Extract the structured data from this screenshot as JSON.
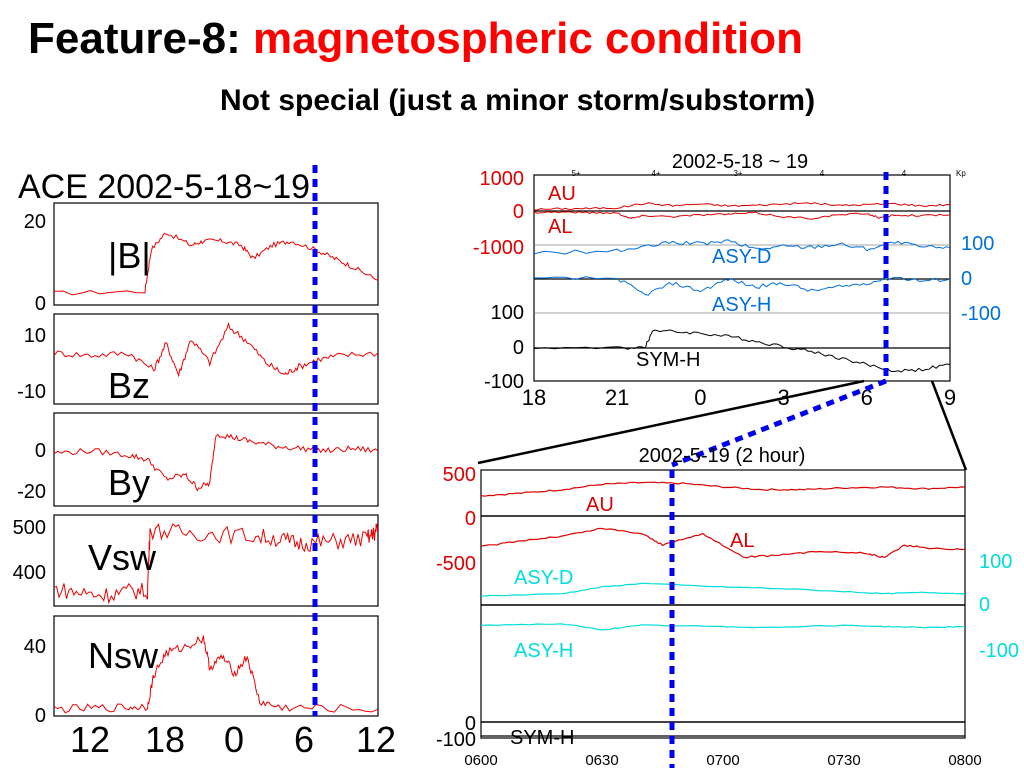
{
  "slide": {
    "title_prefix": "Feature-8:",
    "title_accent": "magnetospheric condition",
    "subtitle": "Not special (just a minor storm/substorm)"
  },
  "colors": {
    "ace_trace": "#ee0000",
    "au_al": "#dd0000",
    "asy_panel_a": "#0070dd",
    "asy_panel_c": "#00dddd",
    "sym": "#000000",
    "marker": "#0000ee"
  },
  "chart_data": [
    {
      "type": "line",
      "title": "ACE 2002-5-18~19",
      "xlabel": "",
      "x_ticks": [
        "12",
        "18",
        "0",
        "6",
        "12"
      ],
      "marker_at": "~07 UT, 2002-5-19",
      "panels": [
        {
          "label": "|B|",
          "ytick_labels": [
            "20",
            "0"
          ],
          "ylim": [
            0,
            22
          ]
        },
        {
          "label": "Bz",
          "ytick_labels": [
            "10",
            "-10"
          ],
          "ylim": [
            -20,
            15
          ]
        },
        {
          "label": "By",
          "ytick_labels": [
            "0",
            "-20"
          ],
          "ylim": [
            -25,
            15
          ]
        },
        {
          "label": "Vsw",
          "ytick_labels": [
            "500",
            "400"
          ],
          "ylim": [
            330,
            510
          ]
        },
        {
          "label": "Nsw",
          "ytick_labels": [
            "40",
            "0"
          ],
          "ylim": [
            0,
            50
          ]
        }
      ],
      "series": [
        {
          "panel": 0,
          "x": [
            10,
            17.3,
            17.8,
            19,
            21,
            22,
            23.5,
            25,
            26,
            27.5,
            29,
            31,
            32.5,
            34,
            36
          ],
          "y": [
            2,
            2.5,
            12,
            16,
            13,
            14,
            14,
            13,
            10,
            13,
            14,
            12,
            10,
            8,
            5
          ]
        },
        {
          "panel": 1,
          "x": [
            10,
            13,
            16,
            18,
            19,
            20,
            21,
            22.5,
            24,
            25.5,
            27,
            28.5,
            29.5,
            31,
            33,
            36
          ],
          "y": [
            0,
            -1,
            0,
            -7,
            4,
            -9,
            6,
            -4,
            11,
            5,
            -4,
            -9,
            -6,
            -3,
            -1,
            0
          ]
        },
        {
          "panel": 2,
          "x": [
            10,
            13,
            16,
            17.5,
            19,
            20.5,
            21.5,
            22.5,
            23,
            24.5,
            26,
            28,
            30,
            32,
            34,
            36
          ],
          "y": [
            -2,
            -1,
            -3,
            -5,
            -14,
            -12,
            -18,
            -16,
            7,
            5,
            3,
            1,
            0,
            -1,
            0,
            -1
          ]
        },
        {
          "panel": 3,
          "x": [
            10,
            12,
            14,
            16,
            17.5,
            17.7,
            20,
            23,
            26,
            28,
            29.5,
            31,
            33,
            35,
            35.7,
            36
          ],
          "y": [
            360,
            352,
            347,
            355,
            355,
            484,
            480,
            476,
            472,
            466,
            456,
            458,
            462,
            466,
            476,
            490
          ]
        },
        {
          "panel": 4,
          "x": [
            10,
            13,
            16,
            17.5,
            18,
            19,
            20.5,
            22,
            22.5,
            23.5,
            24.5,
            25.5,
            26.5,
            28,
            31,
            36
          ],
          "y": [
            2,
            2.5,
            3,
            3.5,
            20,
            32,
            35,
            40,
            24,
            30,
            21,
            30,
            6,
            3,
            2.5,
            2
          ]
        }
      ]
    },
    {
      "type": "line",
      "title": "2002-5-18 ~ 19",
      "x_ticks": [
        "18",
        "21",
        "0",
        "3",
        "6",
        "9"
      ],
      "kp_labels": [
        "5+",
        "4+",
        "3+",
        "4",
        "4"
      ],
      "kp_axis_label": "Kp",
      "panels": [
        {
          "ytick_labels": [
            "1000",
            "0",
            "-1000"
          ],
          "ylim": [
            -1000,
            1000
          ],
          "tick_color": "#dd0000"
        },
        {
          "ytick_labels": [
            "100",
            "0",
            "-100"
          ],
          "ylim": [
            -100,
            100
          ],
          "tick_color": "#0070dd",
          "side": "right"
        },
        {
          "ytick_labels": [
            "100",
            "0",
            "-100"
          ],
          "ylim": [
            -100,
            100
          ],
          "tick_color": "#000000"
        }
      ],
      "series": [
        {
          "name": "AU",
          "panel": 0,
          "x": [
            18,
            19,
            20,
            21,
            22,
            23,
            24,
            25,
            26,
            27,
            28,
            29,
            30,
            31,
            32,
            33
          ],
          "y": [
            50,
            70,
            80,
            100,
            240,
            170,
            220,
            160,
            180,
            220,
            250,
            170,
            200,
            230,
            160,
            200
          ]
        },
        {
          "name": "AL",
          "panel": 0,
          "x": [
            18,
            19,
            20,
            21,
            21.5,
            22,
            23,
            24,
            25,
            26,
            27,
            28,
            29,
            30,
            30.5,
            31,
            32,
            33
          ],
          "y": [
            -40,
            -30,
            -50,
            -60,
            -230,
            -140,
            -170,
            -120,
            -100,
            -60,
            -180,
            -230,
            -120,
            -80,
            -220,
            -120,
            -140,
            -120
          ]
        },
        {
          "name": "ASY-D",
          "panel": 1,
          "x": [
            18,
            21,
            22,
            23,
            24,
            25,
            26,
            27,
            28,
            29,
            30,
            31,
            32,
            33
          ],
          "y": [
            35,
            40,
            50,
            62,
            58,
            65,
            45,
            52,
            50,
            58,
            45,
            62,
            50,
            48
          ]
        },
        {
          "name": "ASY-H",
          "panel": 1,
          "x": [
            18,
            21,
            22,
            23,
            24,
            25,
            26,
            27,
            28,
            29,
            30,
            31,
            32,
            33
          ],
          "y": [
            -30,
            -28,
            -70,
            -40,
            -60,
            -30,
            -50,
            -40,
            -60,
            -50,
            -40,
            -25,
            -35,
            -30
          ]
        },
        {
          "name": "SYM-H",
          "panel": 2,
          "x": [
            18,
            21,
            22,
            22.3,
            23,
            24,
            25,
            26,
            27,
            28,
            29,
            30,
            31,
            32,
            33
          ],
          "y": [
            0,
            0,
            2,
            55,
            50,
            45,
            35,
            20,
            5,
            -10,
            -30,
            -50,
            -70,
            -65,
            -50
          ]
        }
      ]
    },
    {
      "type": "line",
      "title": "2002-5-19  (2 hour)",
      "x_ticks": [
        "0600",
        "0630",
        "0700",
        "0730",
        "0800"
      ],
      "panels": [
        {
          "ytick_labels": [
            "500",
            "0",
            "-500"
          ],
          "ylim": [
            -500,
            500
          ],
          "tick_color": "#dd0000"
        },
        {
          "ytick_labels": [
            "100",
            "0",
            "-100"
          ],
          "ylim": [
            -100,
            100
          ],
          "tick_color": "#00dddd",
          "side": "right"
        },
        {
          "ytick_labels": [
            "0",
            "-100"
          ],
          "ylim": [
            -100,
            0
          ],
          "tick_color": "#000000"
        }
      ],
      "series": [
        {
          "name": "AU",
          "panel": 0,
          "x": [
            0,
            10,
            20,
            30,
            40,
            50,
            60,
            70,
            80,
            90,
            100,
            110,
            120
          ],
          "y": [
            230,
            260,
            300,
            360,
            380,
            370,
            330,
            300,
            300,
            320,
            330,
            310,
            330
          ]
        },
        {
          "name": "AL",
          "panel": 0,
          "x": [
            0,
            10,
            20,
            30,
            40,
            45,
            55,
            65,
            75,
            85,
            95,
            100,
            105,
            110,
            120
          ],
          "y": [
            -350,
            -280,
            -230,
            -140,
            -200,
            -330,
            -200,
            -470,
            -440,
            -400,
            -420,
            -470,
            -330,
            -360,
            -380
          ]
        },
        {
          "name": "ASY-D",
          "panel": 1,
          "x": [
            0,
            20,
            30,
            40,
            60,
            70,
            90,
            100,
            110,
            120
          ],
          "y": [
            20,
            25,
            40,
            48,
            40,
            38,
            30,
            25,
            28,
            25
          ]
        },
        {
          "name": "ASY-H",
          "panel": 1,
          "x": [
            0,
            20,
            30,
            40,
            60,
            70,
            90,
            100,
            110,
            120
          ],
          "y": [
            -45,
            -42,
            -55,
            -45,
            -48,
            -50,
            -45,
            -48,
            -50,
            -48
          ]
        },
        {
          "name": "SYM-H",
          "panel": 2,
          "x": [
            0,
            15,
            30,
            45,
            60,
            75,
            90,
            105,
            120
          ],
          "y": [
            -65,
            -68,
            -72,
            -75,
            -78,
            -75,
            -68,
            -60,
            -52
          ]
        }
      ]
    }
  ]
}
